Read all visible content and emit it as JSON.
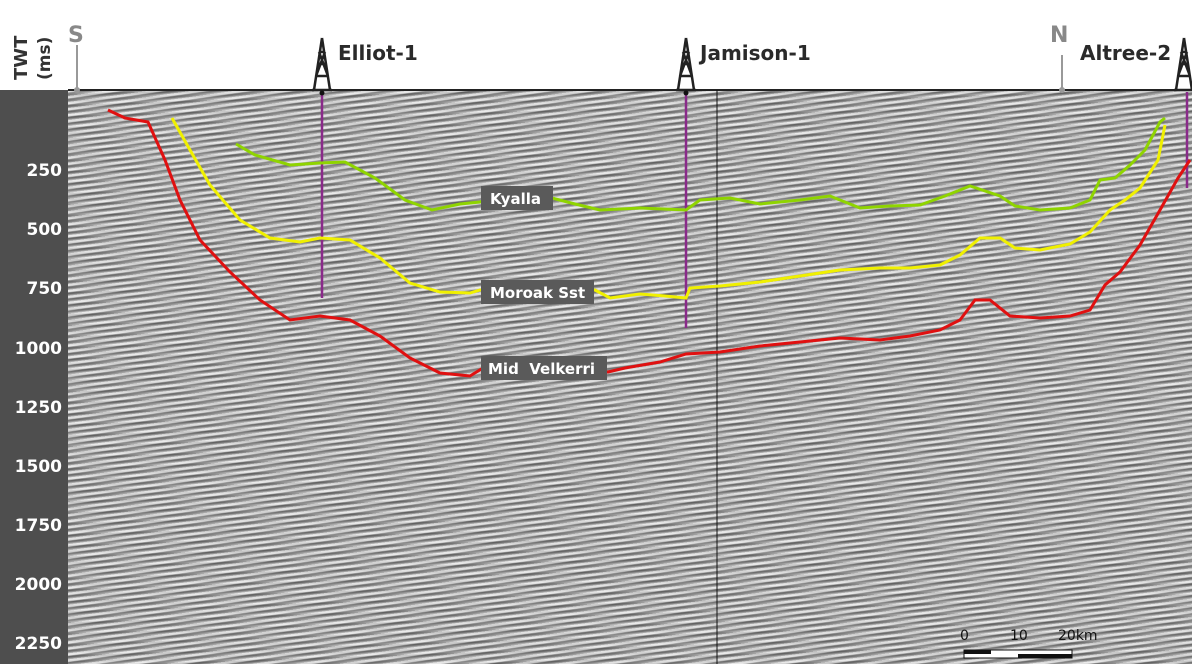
{
  "axis": {
    "title": "TWT",
    "unit": "(ms)",
    "ticks": [
      "250",
      "500",
      "750",
      "1000",
      "1250",
      "1500",
      "1750",
      "2000",
      "2250"
    ]
  },
  "compass": {
    "south": "S",
    "north": "N"
  },
  "wells": [
    {
      "name": "Elliot-1"
    },
    {
      "name": "Jamison-1"
    },
    {
      "name": "Altree-2"
    }
  ],
  "horizons": [
    {
      "label": "Kyalla",
      "color": "#8fd400"
    },
    {
      "label": "Moroak Sst",
      "color": "#f0f000"
    },
    {
      "label": "Mid  Velkerri",
      "color": "#e01010"
    }
  ],
  "scale_bar": {
    "labels": [
      "0",
      "10",
      "20km"
    ]
  },
  "colors": {
    "well_line": "#8a2a8a",
    "axis_bg": "#4e4e4e",
    "label_bg": "#5a5a5a"
  }
}
